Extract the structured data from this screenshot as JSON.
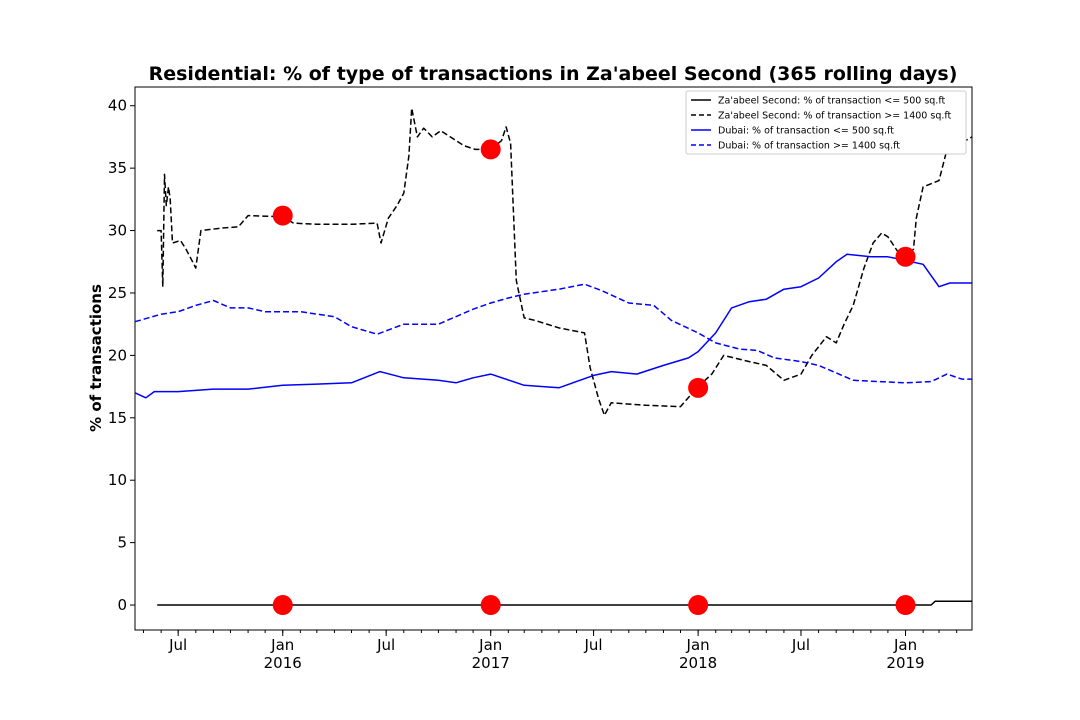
{
  "chart_data": {
    "type": "line",
    "title": "Residential: % of type of transactions in Za'abeel Second (365 rolling days)",
    "xlabel": "",
    "ylabel": "% of transactions",
    "xlim": [
      "2015-04-16",
      "2019-04-28"
    ],
    "ylim": [
      -2,
      41.5
    ],
    "yticks": [
      0,
      5,
      10,
      15,
      20,
      25,
      30,
      35,
      40
    ],
    "xticks": [
      {
        "date": "2015-07-01",
        "label": "Jul",
        "sub": ""
      },
      {
        "date": "2016-01-01",
        "label": "Jan",
        "sub": "2016"
      },
      {
        "date": "2016-07-01",
        "label": "Jul",
        "sub": ""
      },
      {
        "date": "2017-01-01",
        "label": "Jan",
        "sub": "2017"
      },
      {
        "date": "2017-07-01",
        "label": "Jul",
        "sub": ""
      },
      {
        "date": "2018-01-01",
        "label": "Jan",
        "sub": "2018"
      },
      {
        "date": "2018-07-01",
        "label": "Jul",
        "sub": ""
      },
      {
        "date": "2019-01-01",
        "label": "Jan",
        "sub": "2019"
      }
    ],
    "legend_position": "top-right",
    "series": [
      {
        "name": "Za'abeel Second: % of transaction <= 500 sq.ft",
        "color": "#000000",
        "style": "solid",
        "points": [
          [
            "2015-05-25",
            0
          ],
          [
            "2019-02-15",
            0
          ],
          [
            "2019-02-22",
            0.3
          ],
          [
            "2019-04-28",
            0.3
          ]
        ]
      },
      {
        "name": "Za'abeel Second: % of transaction >= 1400 sq.ft",
        "color": "#000000",
        "style": "dashed",
        "points": [
          [
            "2015-05-25",
            30
          ],
          [
            "2015-06-01",
            30
          ],
          [
            "2015-06-04",
            25.5
          ],
          [
            "2015-06-07",
            34.5
          ],
          [
            "2015-06-10",
            32
          ],
          [
            "2015-06-14",
            33.5
          ],
          [
            "2015-06-17",
            32.5
          ],
          [
            "2015-06-21",
            29
          ],
          [
            "2015-07-05",
            29.2
          ],
          [
            "2015-07-15",
            28.5
          ],
          [
            "2015-08-01",
            27
          ],
          [
            "2015-08-10",
            30
          ],
          [
            "2015-09-15",
            30.2
          ],
          [
            "2015-10-15",
            30.3
          ],
          [
            "2015-11-01",
            31.2
          ],
          [
            "2016-01-01",
            31.1
          ],
          [
            "2016-01-20",
            30.6
          ],
          [
            "2016-03-01",
            30.5
          ],
          [
            "2016-05-01",
            30.5
          ],
          [
            "2016-06-15",
            30.6
          ],
          [
            "2016-06-22",
            29
          ],
          [
            "2016-07-05",
            31
          ],
          [
            "2016-07-20",
            32
          ],
          [
            "2016-08-01",
            33
          ],
          [
            "2016-08-10",
            36
          ],
          [
            "2016-08-15",
            39.8
          ],
          [
            "2016-08-25",
            37.5
          ],
          [
            "2016-09-05",
            38.2
          ],
          [
            "2016-09-20",
            37.5
          ],
          [
            "2016-10-05",
            38
          ],
          [
            "2016-11-15",
            36.8
          ],
          [
            "2016-12-05",
            36.5
          ],
          [
            "2017-01-01",
            36.5
          ],
          [
            "2017-01-20",
            37.2
          ],
          [
            "2017-01-28",
            38.3
          ],
          [
            "2017-02-05",
            37
          ],
          [
            "2017-02-15",
            26
          ],
          [
            "2017-03-01",
            23
          ],
          [
            "2017-03-20",
            22.8
          ],
          [
            "2017-05-01",
            22.2
          ],
          [
            "2017-06-15",
            21.8
          ],
          [
            "2017-06-25",
            19
          ],
          [
            "2017-07-10",
            16.5
          ],
          [
            "2017-07-20",
            15.2
          ],
          [
            "2017-08-01",
            16.2
          ],
          [
            "2017-10-01",
            16
          ],
          [
            "2017-12-01",
            15.9
          ],
          [
            "2018-01-01",
            17.5
          ],
          [
            "2018-01-25",
            18.5
          ],
          [
            "2018-02-15",
            20
          ],
          [
            "2018-04-01",
            19.5
          ],
          [
            "2018-05-01",
            19.2
          ],
          [
            "2018-06-01",
            18
          ],
          [
            "2018-07-01",
            18.5
          ],
          [
            "2018-07-20",
            20
          ],
          [
            "2018-08-15",
            21.5
          ],
          [
            "2018-09-01",
            21
          ],
          [
            "2018-09-15",
            22.5
          ],
          [
            "2018-10-01",
            24
          ],
          [
            "2018-10-20",
            27
          ],
          [
            "2018-11-05",
            29
          ],
          [
            "2018-11-20",
            29.8
          ],
          [
            "2018-12-01",
            29.5
          ],
          [
            "2018-12-20",
            28.2
          ],
          [
            "2019-01-01",
            28
          ],
          [
            "2019-01-15",
            28.5
          ],
          [
            "2019-01-20",
            31
          ],
          [
            "2019-02-01",
            33.5
          ],
          [
            "2019-03-01",
            34
          ],
          [
            "2019-03-15",
            36.5
          ],
          [
            "2019-04-01",
            36.8
          ],
          [
            "2019-04-28",
            37.5
          ]
        ]
      },
      {
        "name": "Dubai: % of transaction <= 500 sq.ft",
        "color": "#0000ff",
        "style": "solid",
        "points": [
          [
            "2015-04-16",
            17
          ],
          [
            "2015-05-05",
            16.6
          ],
          [
            "2015-05-20",
            17.1
          ],
          [
            "2015-07-01",
            17.1
          ],
          [
            "2015-09-01",
            17.3
          ],
          [
            "2015-11-01",
            17.3
          ],
          [
            "2016-01-01",
            17.6
          ],
          [
            "2016-03-01",
            17.7
          ],
          [
            "2016-05-01",
            17.8
          ],
          [
            "2016-06-20",
            18.7
          ],
          [
            "2016-08-01",
            18.2
          ],
          [
            "2016-10-01",
            18.0
          ],
          [
            "2016-11-01",
            17.8
          ],
          [
            "2016-12-01",
            18.2
          ],
          [
            "2017-01-01",
            18.5
          ],
          [
            "2017-03-01",
            17.6
          ],
          [
            "2017-05-01",
            17.4
          ],
          [
            "2017-07-01",
            18.4
          ],
          [
            "2017-08-01",
            18.7
          ],
          [
            "2017-09-15",
            18.5
          ],
          [
            "2017-11-01",
            19.2
          ],
          [
            "2017-12-15",
            19.8
          ],
          [
            "2018-01-01",
            20.3
          ],
          [
            "2018-02-01",
            21.8
          ],
          [
            "2018-03-01",
            23.8
          ],
          [
            "2018-04-01",
            24.3
          ],
          [
            "2018-05-01",
            24.5
          ],
          [
            "2018-06-01",
            25.3
          ],
          [
            "2018-07-01",
            25.5
          ],
          [
            "2018-08-01",
            26.2
          ],
          [
            "2018-09-01",
            27.5
          ],
          [
            "2018-09-20",
            28.1
          ],
          [
            "2018-11-01",
            27.9
          ],
          [
            "2018-12-01",
            27.9
          ],
          [
            "2019-01-01",
            27.6
          ],
          [
            "2019-02-01",
            27.3
          ],
          [
            "2019-03-01",
            25.5
          ],
          [
            "2019-03-20",
            25.8
          ],
          [
            "2019-04-28",
            25.8
          ]
        ]
      },
      {
        "name": "Dubai: % of transaction >= 1400 sq.ft",
        "color": "#0000ff",
        "style": "dashed",
        "points": [
          [
            "2015-04-16",
            22.7
          ],
          [
            "2015-06-01",
            23.3
          ],
          [
            "2015-07-01",
            23.5
          ],
          [
            "2015-08-01",
            24.0
          ],
          [
            "2015-09-01",
            24.4
          ],
          [
            "2015-10-01",
            23.8
          ],
          [
            "2015-11-01",
            23.8
          ],
          [
            "2015-12-01",
            23.5
          ],
          [
            "2016-02-01",
            23.5
          ],
          [
            "2016-04-01",
            23.1
          ],
          [
            "2016-05-01",
            22.3
          ],
          [
            "2016-06-15",
            21.7
          ],
          [
            "2016-08-01",
            22.5
          ],
          [
            "2016-10-01",
            22.5
          ],
          [
            "2016-12-01",
            23.7
          ],
          [
            "2017-01-01",
            24.2
          ],
          [
            "2017-02-01",
            24.6
          ],
          [
            "2017-03-01",
            24.9
          ],
          [
            "2017-05-01",
            25.3
          ],
          [
            "2017-06-15",
            25.7
          ],
          [
            "2017-07-15",
            25.2
          ],
          [
            "2017-09-01",
            24.2
          ],
          [
            "2017-10-15",
            24.0
          ],
          [
            "2017-11-15",
            22.8
          ],
          [
            "2018-01-01",
            21.8
          ],
          [
            "2018-02-01",
            21.0
          ],
          [
            "2018-03-15",
            20.5
          ],
          [
            "2018-04-15",
            20.4
          ],
          [
            "2018-05-15",
            19.8
          ],
          [
            "2018-07-01",
            19.5
          ],
          [
            "2018-08-01",
            19.2
          ],
          [
            "2018-09-01",
            18.6
          ],
          [
            "2018-10-01",
            18.0
          ],
          [
            "2018-11-15",
            17.9
          ],
          [
            "2019-01-01",
            17.8
          ],
          [
            "2019-02-15",
            17.9
          ],
          [
            "2019-03-15",
            18.5
          ],
          [
            "2019-04-10",
            18.1
          ],
          [
            "2019-04-28",
            18.1
          ]
        ]
      }
    ],
    "markers": {
      "color": "#ff0000",
      "points": [
        [
          "2016-01-01",
          0
        ],
        [
          "2017-01-01",
          0
        ],
        [
          "2018-01-01",
          0
        ],
        [
          "2019-01-01",
          0
        ],
        [
          "2016-01-01",
          31.2
        ],
        [
          "2017-01-01",
          36.5
        ],
        [
          "2018-01-01",
          17.4
        ],
        [
          "2019-01-01",
          27.9
        ]
      ]
    }
  }
}
